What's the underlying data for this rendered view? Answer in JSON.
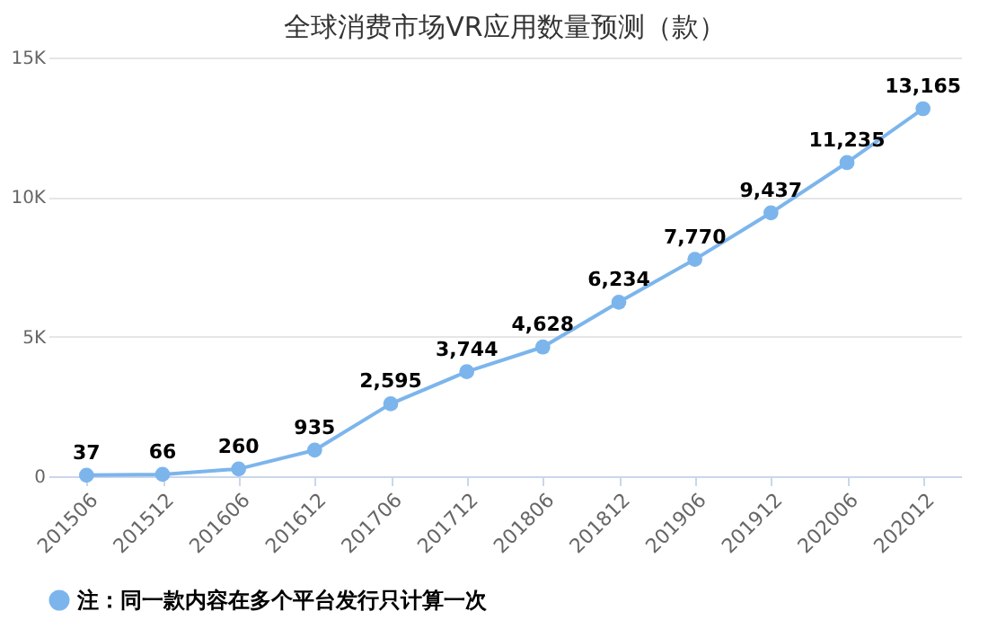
{
  "chart_data": {
    "type": "line",
    "title": "全球消费市场VR应用数量预测（款）",
    "categories": [
      "201506",
      "201512",
      "201606",
      "201612",
      "201706",
      "201712",
      "201806",
      "201812",
      "201906",
      "201912",
      "202006",
      "202012"
    ],
    "series": [
      {
        "name": "注：同一款内容在多个平台发行只计算一次",
        "color": "#7cb5ec",
        "values": [
          37,
          66,
          260,
          935,
          2595,
          3744,
          4628,
          6234,
          7770,
          9437,
          11235,
          13165
        ],
        "value_labels": [
          "37",
          "66",
          "260",
          "935",
          "2,595",
          "3,744",
          "4,628",
          "6,234",
          "7,770",
          "9,437",
          "11,235",
          "13,165"
        ]
      }
    ],
    "ylim": [
      0,
      15000
    ],
    "yticks": [
      0,
      {
        "value": 5000,
        "label": "5K"
      },
      {
        "value": 10000,
        "label": "10K"
      },
      {
        "value": 15000,
        "label": "15K"
      }
    ],
    "grid": "y",
    "legend": "bottom",
    "marker": "circle",
    "line_style": "solid"
  }
}
